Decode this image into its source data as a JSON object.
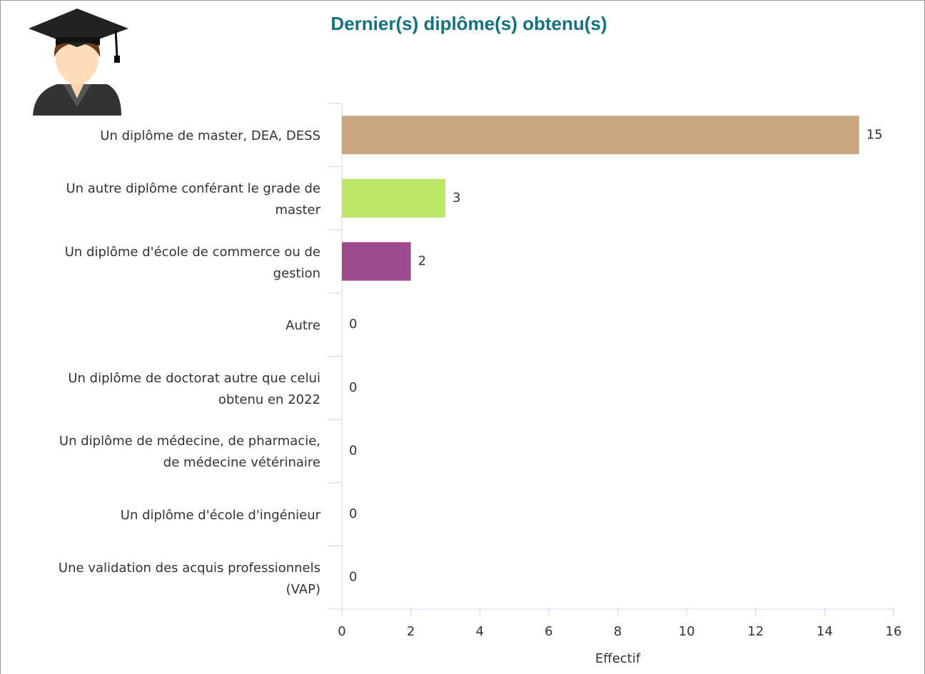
{
  "chart_data": {
    "type": "bar",
    "orientation": "horizontal",
    "title": "Dernier(s) diplôme(s) obtenu(s)",
    "x_label": "Effectif",
    "categories": [
      "Un diplôme de master, DEA, DESS",
      "Un autre diplôme conférant le grade de master",
      "Un diplôme d'école de commerce ou de gestion",
      "Autre",
      "Un diplôme de doctorat autre que celui obtenu en 2022",
      "Un diplôme de médecine, de pharmacie, de médecine vétérinaire",
      "Un diplôme d'école d'ingénieur",
      "Une validation des acquis professionnels (VAP)"
    ],
    "values": [
      15,
      3,
      2,
      0,
      0,
      0,
      0,
      0
    ],
    "colors": [
      "#c8a57f",
      "#bce665",
      "#9e4a8c"
    ],
    "xlim": [
      0,
      16
    ],
    "xticks": [
      0,
      2,
      4,
      6,
      8,
      10,
      12,
      14,
      16
    ]
  }
}
